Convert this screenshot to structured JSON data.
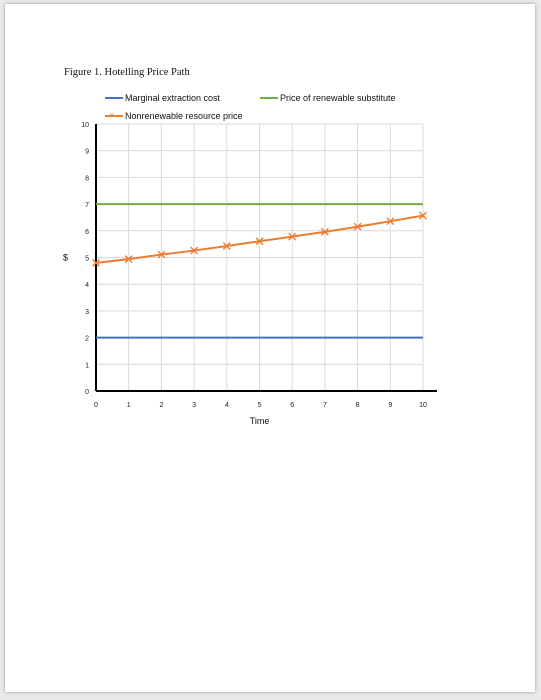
{
  "figure_title": "Figure 1. Hotelling Price Path",
  "chart_data": {
    "type": "line",
    "title": "",
    "xlabel": "Time",
    "ylabel": "$",
    "x": [
      0,
      1,
      2,
      3,
      4,
      5,
      6,
      7,
      8,
      9,
      10
    ],
    "xlim": [
      0,
      10
    ],
    "ylim": [
      0,
      10
    ],
    "xticks": [
      0,
      1,
      2,
      3,
      4,
      5,
      6,
      7,
      8,
      9,
      10
    ],
    "yticks": [
      0,
      1,
      2,
      3,
      4,
      5,
      6,
      7,
      8,
      9,
      10
    ],
    "grid": true,
    "legend_position": "top",
    "series": [
      {
        "name": "Marginal extraction cost",
        "color": "#4472c4",
        "marker": "none",
        "values": [
          2,
          2,
          2,
          2,
          2,
          2,
          2,
          2,
          2,
          2,
          2
        ]
      },
      {
        "name": "Price of renewable substitute",
        "color": "#70ad47",
        "marker": "none",
        "values": [
          7,
          7,
          7,
          7,
          7,
          7,
          7,
          7,
          7,
          7,
          7
        ]
      },
      {
        "name": "Nonrenewable resource price",
        "color": "#ed7d31",
        "marker": "x",
        "values": [
          4.8,
          4.94,
          5.11,
          5.26,
          5.43,
          5.61,
          5.78,
          5.96,
          6.15,
          6.36,
          6.57
        ]
      }
    ]
  }
}
